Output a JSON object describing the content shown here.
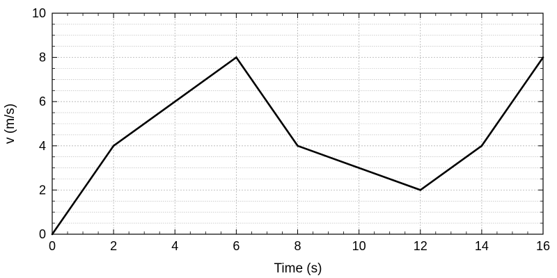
{
  "chart_data": {
    "type": "line",
    "xlabel": "Time (s)",
    "ylabel": "v (m/s)",
    "xlim": [
      0,
      16
    ],
    "ylim": [
      0,
      10
    ],
    "xticks": [
      "0",
      "2",
      "4",
      "6",
      "8",
      "10",
      "12",
      "14",
      "16"
    ],
    "yticks": [
      "0",
      "2",
      "4",
      "6",
      "8",
      "10"
    ],
    "x_minor_step": 0.5,
    "y_minor_step": 0.5,
    "grid": true,
    "series": [
      {
        "x": [
          0,
          2,
          6,
          8,
          12,
          14,
          16
        ],
        "y": [
          0,
          4,
          8,
          4,
          2,
          4,
          8
        ]
      }
    ],
    "colors": {
      "line": "#000000",
      "grid": "#b0b0b0",
      "axes": "#000000"
    }
  }
}
